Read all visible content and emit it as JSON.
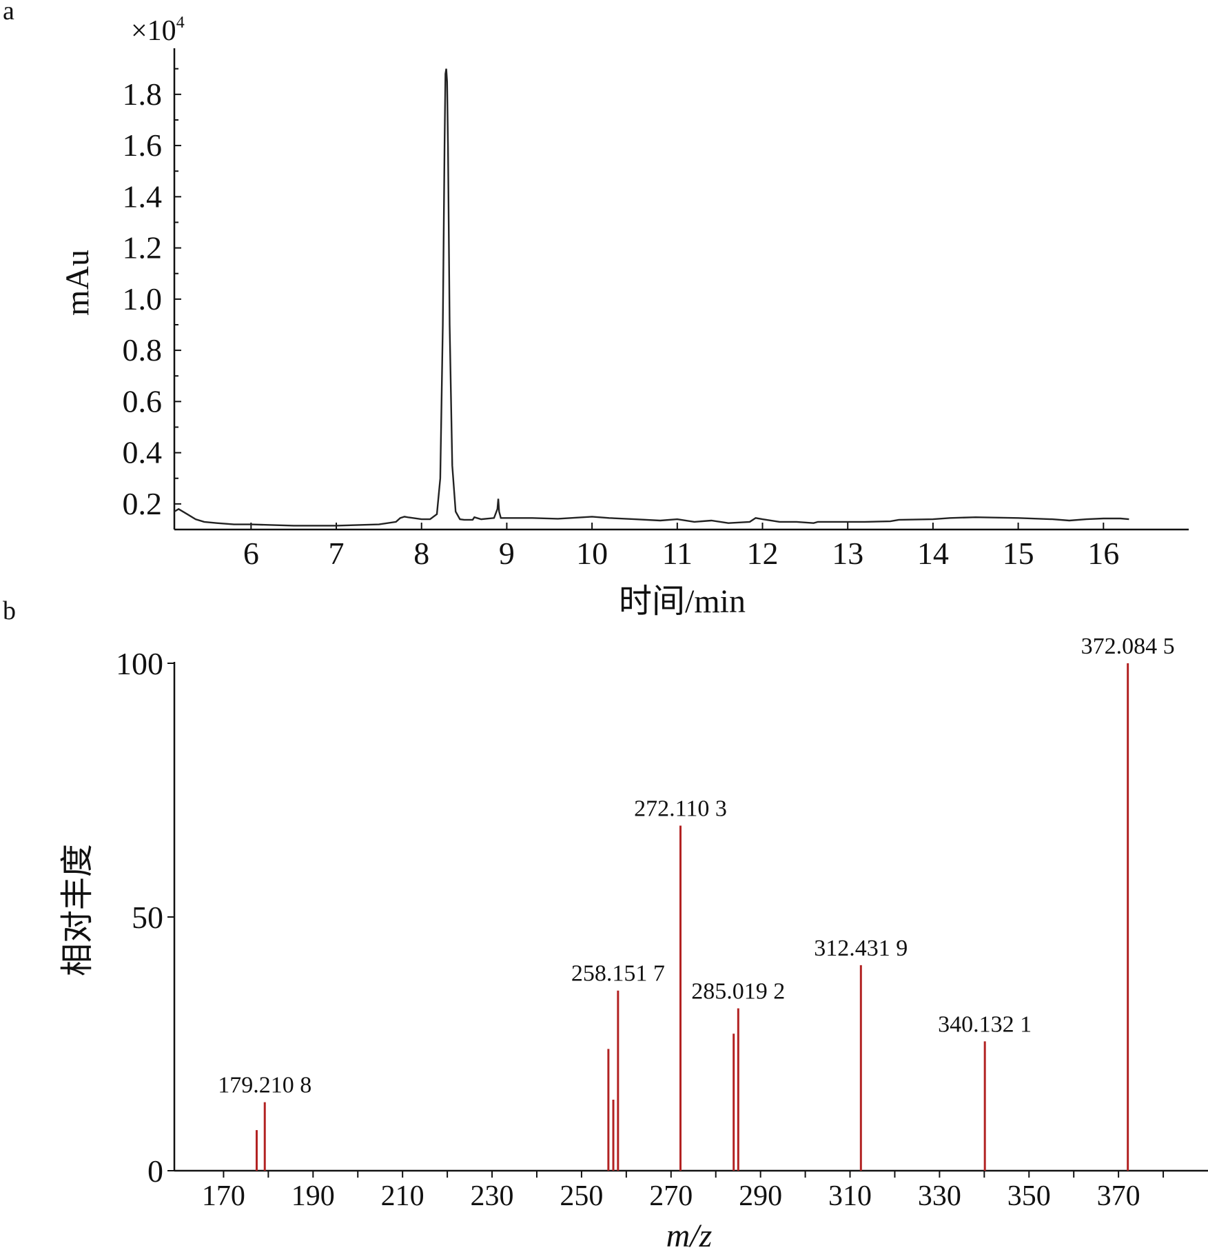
{
  "figure": {
    "panel_a_letter": "a",
    "panel_b_letter": "b"
  },
  "chart_data": [
    {
      "type": "line",
      "panel": "a",
      "xlabel": "时间/min",
      "ylabel": "mAu",
      "y_multiplier": "×10",
      "y_multiplier_exp": "4",
      "xlim": [
        5.1,
        17.0
      ],
      "ylim": [
        0.1,
        1.98
      ],
      "x_ticks": [
        6,
        7,
        8,
        9,
        10,
        11,
        12,
        13,
        14,
        15,
        16
      ],
      "y_ticks": [
        0.2,
        0.4,
        0.6,
        0.8,
        1.0,
        1.2,
        1.4,
        1.6,
        1.8
      ],
      "y_tick_labels": [
        "0.2",
        "0.4",
        "0.6",
        "0.8",
        "1.0",
        "1.2",
        "1.4",
        "1.6",
        "1.8"
      ],
      "grid": false,
      "color": "#222222",
      "series": [
        {
          "x": [
            5.1,
            5.15,
            5.25,
            5.35,
            5.45,
            5.6,
            5.8,
            6.0,
            6.5,
            7.0,
            7.5,
            7.7,
            7.75,
            7.8,
            7.85,
            7.9,
            8.0,
            8.1,
            8.18,
            8.22,
            8.25,
            8.27,
            8.28,
            8.29,
            8.3,
            8.31,
            8.33,
            8.36,
            8.4,
            8.45,
            8.5,
            8.6,
            8.62,
            8.7,
            8.85,
            8.89,
            8.9,
            8.91,
            8.93,
            9.0,
            9.3,
            9.6,
            9.9,
            10.0,
            10.2,
            10.5,
            10.8,
            11.0,
            11.2,
            11.4,
            11.6,
            11.85,
            11.92,
            12.0,
            12.2,
            12.4,
            12.6,
            12.65,
            12.9,
            13.2,
            13.5,
            13.6,
            14.0,
            14.2,
            14.5,
            15.0,
            15.4,
            15.6,
            15.8,
            16.0,
            16.2,
            16.3
          ],
          "y": [
            0.17,
            0.18,
            0.16,
            0.14,
            0.13,
            0.125,
            0.12,
            0.12,
            0.115,
            0.115,
            0.12,
            0.13,
            0.145,
            0.15,
            0.147,
            0.145,
            0.14,
            0.14,
            0.16,
            0.3,
            0.9,
            1.6,
            1.88,
            1.9,
            1.85,
            1.6,
            0.9,
            0.35,
            0.17,
            0.14,
            0.138,
            0.138,
            0.148,
            0.14,
            0.145,
            0.18,
            0.22,
            0.17,
            0.145,
            0.145,
            0.145,
            0.142,
            0.148,
            0.15,
            0.145,
            0.14,
            0.135,
            0.14,
            0.13,
            0.135,
            0.125,
            0.13,
            0.145,
            0.14,
            0.13,
            0.13,
            0.125,
            0.13,
            0.13,
            0.13,
            0.132,
            0.138,
            0.14,
            0.145,
            0.148,
            0.145,
            0.14,
            0.135,
            0.14,
            0.143,
            0.143,
            0.14
          ]
        }
      ]
    },
    {
      "type": "bar",
      "panel": "b",
      "xlabel": "m/z",
      "ylabel": "相对丰度",
      "xlim": [
        159,
        390
      ],
      "ylim": [
        0,
        100
      ],
      "x_ticks": [
        170,
        180,
        190,
        200,
        210,
        220,
        230,
        240,
        250,
        260,
        270,
        280,
        290,
        300,
        310,
        320,
        330,
        340,
        350,
        360,
        370,
        380
      ],
      "x_tick_labels": [
        170,
        190,
        210,
        230,
        250,
        270,
        290,
        310,
        330,
        350,
        370
      ],
      "y_ticks": [
        0,
        50,
        100
      ],
      "y_tick_labels": [
        "0",
        "50",
        "100"
      ],
      "grid": false,
      "color": "#b22222",
      "peaks": [
        {
          "mz": 177.4,
          "intensity": 8,
          "label": ""
        },
        {
          "mz": 179.2108,
          "intensity": 13.5,
          "label": "179.210 8"
        },
        {
          "mz": 256.0,
          "intensity": 24,
          "label": ""
        },
        {
          "mz": 257.1,
          "intensity": 14,
          "label": ""
        },
        {
          "mz": 258.1517,
          "intensity": 35.5,
          "label": "258.151 7"
        },
        {
          "mz": 272.1103,
          "intensity": 68,
          "label": "272.110 3"
        },
        {
          "mz": 284.0,
          "intensity": 27,
          "label": ""
        },
        {
          "mz": 285.0192,
          "intensity": 32,
          "label": "285.019 2"
        },
        {
          "mz": 312.4319,
          "intensity": 40.5,
          "label": "312.431 9"
        },
        {
          "mz": 340.1321,
          "intensity": 25.5,
          "label": "340.132 1"
        },
        {
          "mz": 372.0845,
          "intensity": 100,
          "label": "372.084 5"
        }
      ]
    }
  ]
}
